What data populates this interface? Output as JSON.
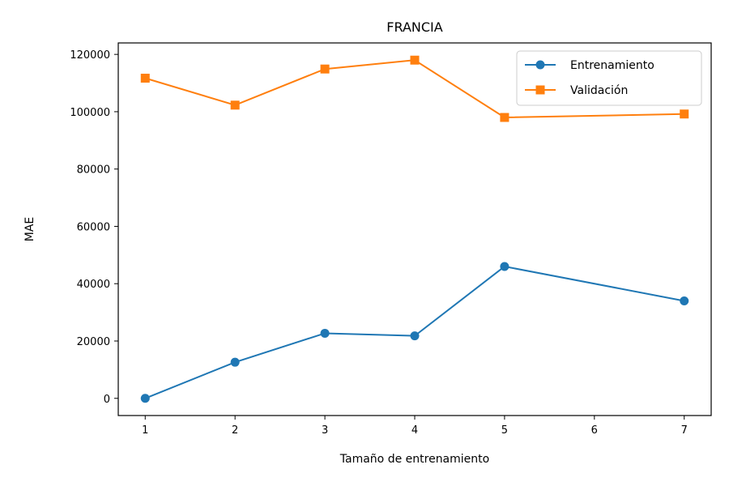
{
  "chart_data": {
    "type": "line",
    "title": "FRANCIA",
    "xlabel": "Tamaño de entrenamiento",
    "ylabel": "MAE",
    "x": [
      1,
      2,
      3,
      4,
      5,
      7
    ],
    "xticks": [
      1,
      2,
      3,
      4,
      5,
      6,
      7
    ],
    "yticks": [
      0,
      20000,
      40000,
      60000,
      80000,
      100000,
      120000
    ],
    "xlim": [
      0.7,
      7.3
    ],
    "ylim": [
      -6000,
      124000
    ],
    "grid": false,
    "legend": "top-right",
    "series": [
      {
        "name": "Entrenamiento",
        "marker": "circle",
        "color": "#1f77b4",
        "values": [
          0,
          12600,
          22700,
          21800,
          46000,
          34000
        ]
      },
      {
        "name": "Validación",
        "marker": "square",
        "color": "#ff7f0e",
        "values": [
          111700,
          102300,
          114900,
          118000,
          98000,
          99200
        ]
      }
    ]
  }
}
